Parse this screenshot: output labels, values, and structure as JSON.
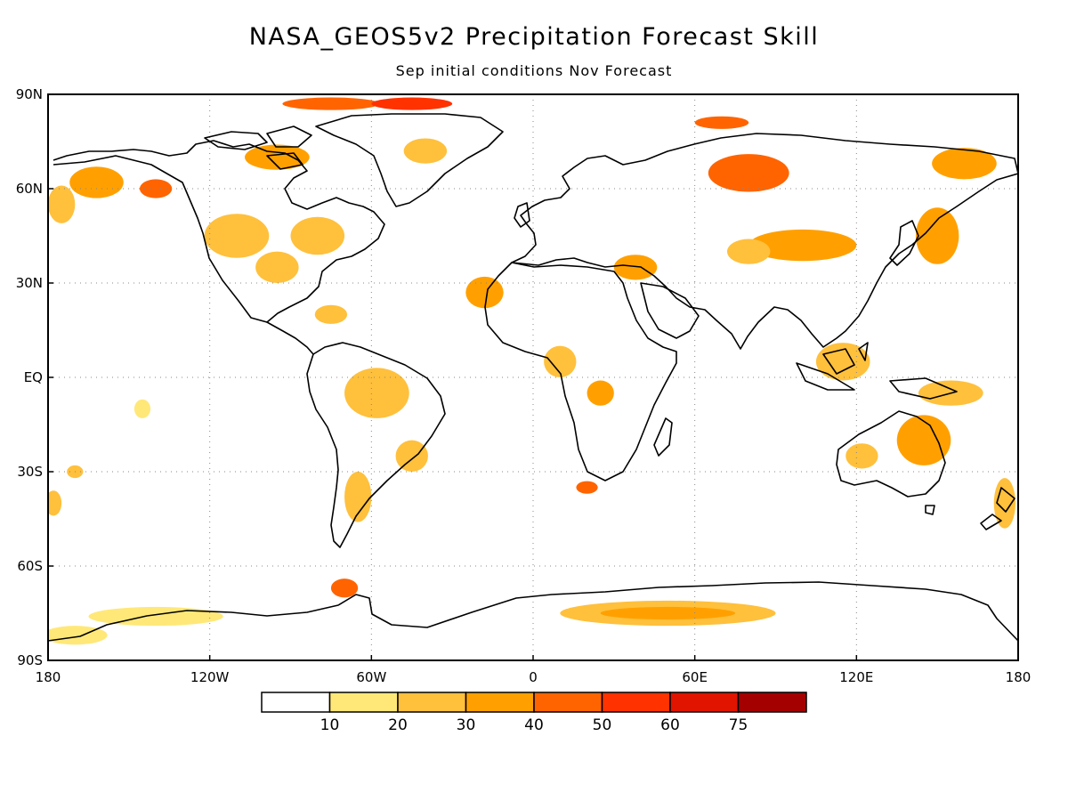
{
  "title": "NASA_GEOS5v2 Precipitation Forecast Skill",
  "subtitle": "Sep initial conditions   Nov Forecast",
  "lat_ticks": [
    {
      "label": "90N",
      "lat": 90
    },
    {
      "label": "60N",
      "lat": 60
    },
    {
      "label": "30N",
      "lat": 30
    },
    {
      "label": "EQ",
      "lat": 0
    },
    {
      "label": "30S",
      "lat": -30
    },
    {
      "label": "60S",
      "lat": -60
    },
    {
      "label": "90S",
      "lat": -90
    }
  ],
  "lon_ticks": [
    {
      "label": "180",
      "lon": -180
    },
    {
      "label": "120W",
      "lon": -120
    },
    {
      "label": "60W",
      "lon": -60
    },
    {
      "label": "0",
      "lon": 0
    },
    {
      "label": "60E",
      "lon": 60
    },
    {
      "label": "120E",
      "lon": 120
    },
    {
      "label": "180",
      "lon": 180
    }
  ],
  "colorbar": {
    "labels": [
      "10",
      "20",
      "30",
      "40",
      "50",
      "60",
      "75"
    ],
    "colors": [
      "#ffffff",
      "#ffe878",
      "#ffc03c",
      "#ffa000",
      "#ff6400",
      "#ff3200",
      "#e11400",
      "#a50000"
    ]
  },
  "skill_regions": [
    {
      "lon": -162,
      "lat": 62,
      "rx": 10,
      "ry": 5,
      "level": 3
    },
    {
      "lon": -175,
      "lat": 55,
      "rx": 5,
      "ry": 6,
      "level": 2
    },
    {
      "lon": -140,
      "lat": 60,
      "rx": 6,
      "ry": 3,
      "level": 4
    },
    {
      "lon": -110,
      "lat": 45,
      "rx": 12,
      "ry": 7,
      "level": 2
    },
    {
      "lon": -95,
      "lat": 35,
      "rx": 8,
      "ry": 5,
      "level": 2
    },
    {
      "lon": -80,
      "lat": 45,
      "rx": 10,
      "ry": 6,
      "level": 2
    },
    {
      "lon": -95,
      "lat": 70,
      "rx": 12,
      "ry": 4,
      "level": 3
    },
    {
      "lon": -75,
      "lat": 87,
      "rx": 18,
      "ry": 2,
      "level": 4
    },
    {
      "lon": -45,
      "lat": 87,
      "rx": 15,
      "ry": 2,
      "level": 5
    },
    {
      "lon": -40,
      "lat": 72,
      "rx": 8,
      "ry": 4,
      "level": 2
    },
    {
      "lon": -75,
      "lat": 20,
      "rx": 6,
      "ry": 3,
      "level": 2
    },
    {
      "lon": -58,
      "lat": -5,
      "rx": 12,
      "ry": 8,
      "level": 2
    },
    {
      "lon": -45,
      "lat": -25,
      "rx": 6,
      "ry": 5,
      "level": 2
    },
    {
      "lon": -65,
      "lat": -38,
      "rx": 5,
      "ry": 8,
      "level": 2
    },
    {
      "lon": -18,
      "lat": 27,
      "rx": 7,
      "ry": 5,
      "level": 3
    },
    {
      "lon": 10,
      "lat": 5,
      "rx": 6,
      "ry": 5,
      "level": 2
    },
    {
      "lon": 25,
      "lat": -5,
      "rx": 5,
      "ry": 4,
      "level": 3
    },
    {
      "lon": 20,
      "lat": -35,
      "rx": 4,
      "ry": 2,
      "level": 4
    },
    {
      "lon": 38,
      "lat": 35,
      "rx": 8,
      "ry": 4,
      "level": 3
    },
    {
      "lon": 80,
      "lat": 65,
      "rx": 15,
      "ry": 6,
      "level": 4
    },
    {
      "lon": 70,
      "lat": 81,
      "rx": 10,
      "ry": 2,
      "level": 4
    },
    {
      "lon": 100,
      "lat": 42,
      "rx": 20,
      "ry": 5,
      "level": 3
    },
    {
      "lon": 80,
      "lat": 40,
      "rx": 8,
      "ry": 4,
      "level": 2
    },
    {
      "lon": 150,
      "lat": 45,
      "rx": 8,
      "ry": 9,
      "level": 3
    },
    {
      "lon": 160,
      "lat": 68,
      "rx": 12,
      "ry": 5,
      "level": 3
    },
    {
      "lon": 145,
      "lat": -20,
      "rx": 10,
      "ry": 8,
      "level": 3
    },
    {
      "lon": 122,
      "lat": -25,
      "rx": 6,
      "ry": 4,
      "level": 2
    },
    {
      "lon": 115,
      "lat": 5,
      "rx": 10,
      "ry": 6,
      "level": 2
    },
    {
      "lon": 155,
      "lat": -5,
      "rx": 12,
      "ry": 4,
      "level": 2
    },
    {
      "lon": -145,
      "lat": -10,
      "rx": 3,
      "ry": 3,
      "level": 1
    },
    {
      "lon": -170,
      "lat": -30,
      "rx": 3,
      "ry": 2,
      "level": 2
    },
    {
      "lon": -178,
      "lat": -40,
      "rx": 3,
      "ry": 4,
      "level": 2
    },
    {
      "lon": 175,
      "lat": -40,
      "rx": 4,
      "ry": 8,
      "level": 2
    },
    {
      "lon": 50,
      "lat": -75,
      "rx": 40,
      "ry": 4,
      "level": 2
    },
    {
      "lon": 50,
      "lat": -75,
      "rx": 25,
      "ry": 2,
      "level": 3
    },
    {
      "lon": -140,
      "lat": -76,
      "rx": 25,
      "ry": 3,
      "level": 1
    },
    {
      "lon": -70,
      "lat": -67,
      "rx": 5,
      "ry": 3,
      "level": 4
    },
    {
      "lon": -170,
      "lat": -82,
      "rx": 12,
      "ry": 3,
      "level": 1
    }
  ]
}
